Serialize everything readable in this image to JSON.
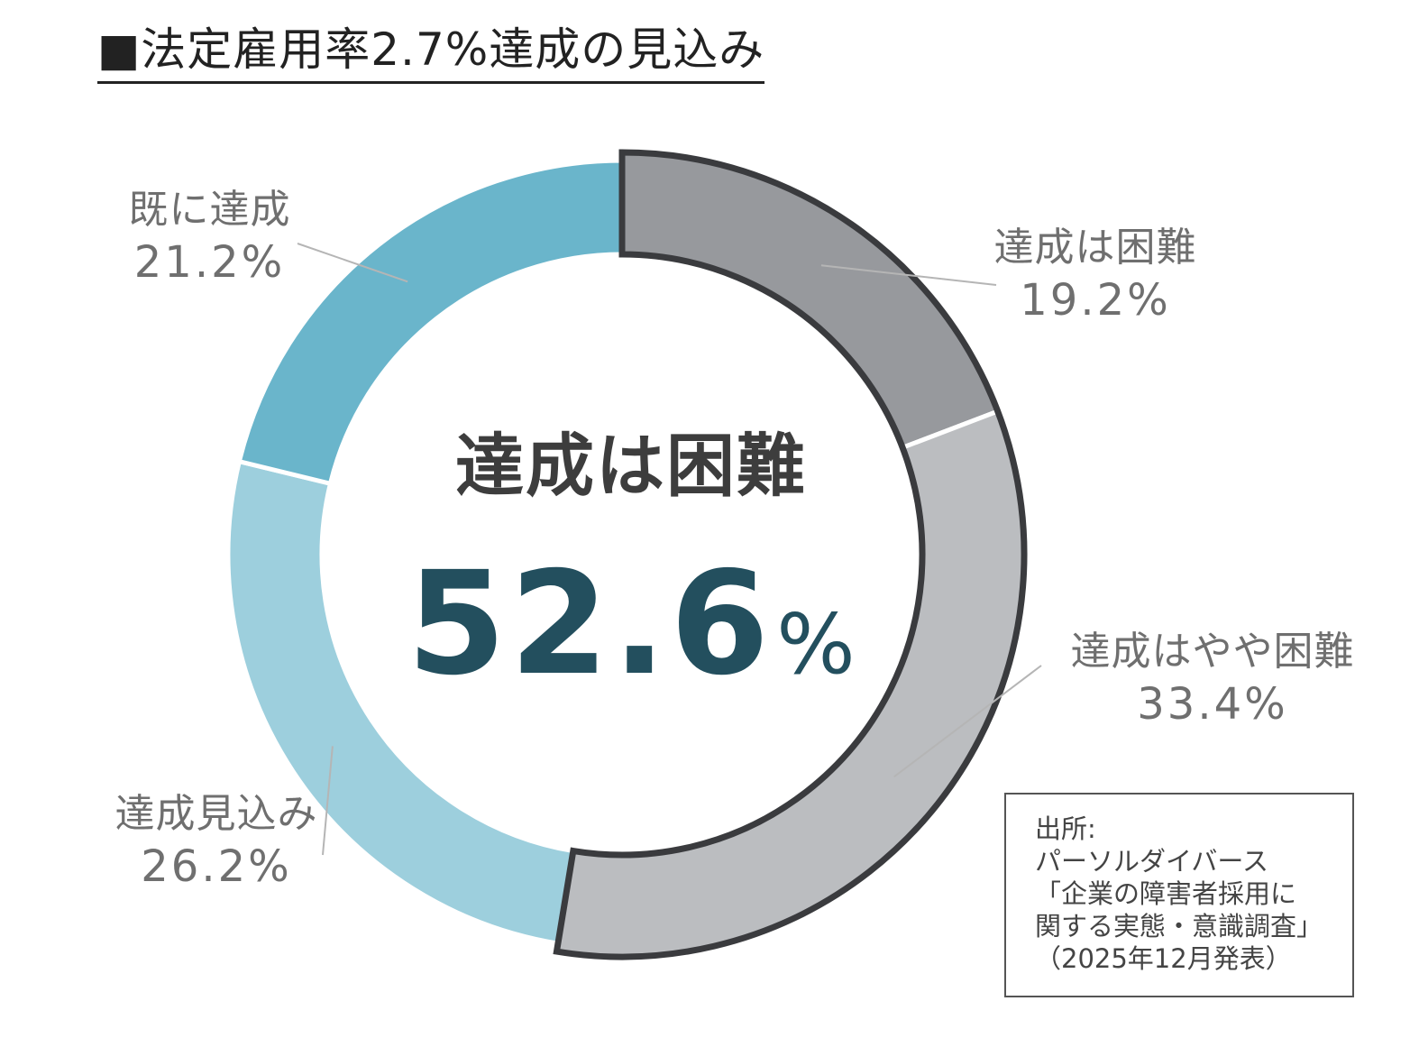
{
  "title": "■法定雇用率2.7%達成の見込み",
  "chart_data": {
    "type": "pie",
    "variant": "donut",
    "unit": "%",
    "slices": [
      {
        "name": "達成は困難",
        "label": "19.2%",
        "value": 19.2,
        "color": "#97999d",
        "highlighted": true
      },
      {
        "name": "達成はやや困難",
        "label": "33.4%",
        "value": 33.4,
        "color": "#bbbdc0",
        "highlighted": true
      },
      {
        "name": "達成見込み",
        "label": "26.2%",
        "value": 26.2,
        "color": "#9dcfdd",
        "highlighted": false
      },
      {
        "name": "既に達成",
        "label": "21.2%",
        "value": 21.2,
        "color": "#6ab5cb",
        "highlighted": false
      }
    ],
    "start": "12 o'clock, clockwise",
    "highlight_outline_color": "#3a3b3e",
    "center": {
      "label": "達成は困難",
      "value": "52.6",
      "unit": "%",
      "value_color": "#234f5e"
    }
  },
  "source": {
    "lines": [
      "出所:",
      "パーソルダイバース",
      "「企業の障害者採用に",
      "関する実態・意識調査」",
      "（2025年12月発表）"
    ]
  }
}
